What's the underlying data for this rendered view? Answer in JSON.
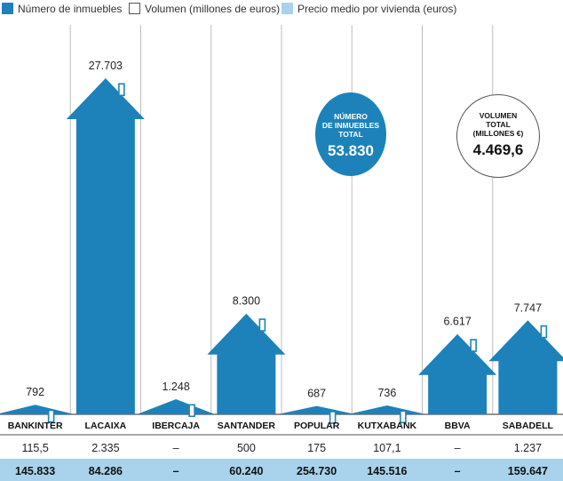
{
  "legend": {
    "count_label": "Número de inmuebles",
    "volume_label": "Volumen (millones de euros)",
    "price_label": "Precio medio por vivienda (euros)"
  },
  "colors": {
    "house": "#1d82b9",
    "price_band": "#a9d2ec",
    "divider": "#555555",
    "grid_line": "#bdbdbd"
  },
  "callouts": {
    "count": {
      "title": "NÚMERO\nDE INMUEBLES\nTOTAL",
      "value": "53.830"
    },
    "volume": {
      "title": "VOLUMEN\nTOTAL\n(MILLONES €)",
      "value": "4.469,6"
    }
  },
  "chart_data": {
    "type": "bar",
    "categories": [
      "BANKINTER",
      "LACAIXA",
      "IBERCAJA",
      "SANTANDER",
      "POPULAR",
      "KUTXABANK",
      "BBVA",
      "SABADELL"
    ],
    "series": [
      {
        "name": "Número de inmuebles",
        "values": [
          792,
          27703,
          1248,
          8300,
          687,
          736,
          6617,
          7747
        ]
      },
      {
        "name": "Volumen (millones de euros)",
        "values": [
          115.5,
          2335,
          null,
          500,
          175,
          107.1,
          null,
          1237
        ]
      },
      {
        "name": "Precio medio por vivienda (euros)",
        "values": [
          145833,
          84286,
          null,
          60240,
          254730,
          145516,
          null,
          159647
        ]
      }
    ],
    "value_labels": [
      "792",
      "27.703",
      "1.248",
      "8.300",
      "687",
      "736",
      "6.617",
      "7.747"
    ],
    "volume_labels": [
      "115,5",
      "2.335",
      "–",
      "500",
      "175",
      "107,1",
      "–",
      "1.237"
    ],
    "price_labels": [
      "145.833",
      "84.286",
      "–",
      "60.240",
      "254.730",
      "145.516",
      "–",
      "159.647"
    ]
  }
}
